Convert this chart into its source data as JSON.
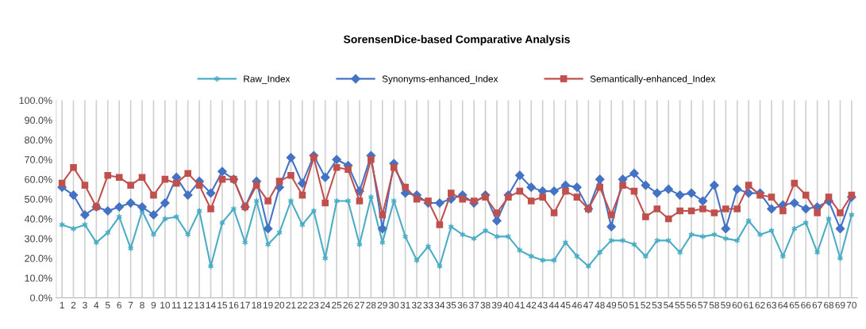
{
  "chart_data": {
    "type": "line",
    "title": "SorensenDice-based Comparative Analysis",
    "categories": [
      "1",
      "2",
      "3",
      "4",
      "5",
      "6",
      "7",
      "8",
      "9",
      "10",
      "11",
      "12",
      "13",
      "14",
      "15",
      "16",
      "17",
      "18",
      "19",
      "20",
      "21",
      "22",
      "23",
      "24",
      "25",
      "26",
      "27",
      "28",
      "29",
      "30",
      "31",
      "32",
      "33",
      "34",
      "35",
      "36",
      "37",
      "38",
      "39",
      "40",
      "41",
      "42",
      "43",
      "44",
      "45",
      "46",
      "47",
      "48",
      "49",
      "50",
      "51",
      "52",
      "53",
      "54",
      "55",
      "56",
      "57",
      "58",
      "59",
      "60",
      "61",
      "62",
      "63",
      "64",
      "65",
      "66",
      "67",
      "68",
      "69",
      "70"
    ],
    "series": [
      {
        "name": "Raw_Index",
        "color": "#4bacc6",
        "marker": "cross",
        "values": [
          37,
          35,
          37,
          28,
          33,
          41,
          25,
          44,
          32,
          40,
          41,
          32,
          44,
          16,
          38,
          45,
          28,
          49,
          27,
          33,
          49,
          37,
          44,
          20,
          49,
          49,
          27,
          51,
          28,
          49,
          31,
          19,
          26,
          16,
          36,
          32,
          30,
          34,
          31,
          31,
          24,
          21,
          19,
          19,
          28,
          21,
          16,
          23,
          29,
          29,
          27,
          21,
          29,
          29,
          23,
          32,
          31,
          32,
          30,
          29,
          39,
          32,
          34,
          21,
          35,
          38,
          23,
          40,
          20,
          42
        ]
      },
      {
        "name": "Synonyms-enhanced_Index",
        "color": "#4472c4",
        "marker": "diamond",
        "values": [
          56,
          52,
          42,
          46,
          44,
          46,
          48,
          46,
          42,
          48,
          61,
          52,
          59,
          53,
          64,
          60,
          46,
          59,
          35,
          56,
          71,
          58,
          72,
          61,
          70,
          67,
          54,
          72,
          35,
          68,
          53,
          52,
          48,
          48,
          50,
          52,
          48,
          52,
          39,
          52,
          62,
          56,
          54,
          54,
          57,
          56,
          45,
          60,
          36,
          60,
          63,
          57,
          53,
          55,
          52,
          53,
          49,
          57,
          35,
          55,
          53,
          53,
          45,
          47,
          48,
          45,
          46,
          49,
          35,
          51
        ]
      },
      {
        "name": "Semantically-enhanced_Index",
        "color": "#c0504d",
        "marker": "square",
        "values": [
          58,
          66,
          57,
          46,
          62,
          61,
          57,
          61,
          52,
          60,
          58,
          63,
          57,
          45,
          60,
          60,
          46,
          57,
          49,
          59,
          62,
          52,
          71,
          48,
          66,
          65,
          49,
          70,
          42,
          66,
          56,
          50,
          49,
          37,
          53,
          50,
          49,
          51,
          43,
          51,
          54,
          49,
          51,
          43,
          54,
          51,
          45,
          56,
          42,
          57,
          54,
          41,
          45,
          40,
          44,
          44,
          45,
          43,
          45,
          45,
          57,
          52,
          51,
          44,
          58,
          52,
          43,
          51,
          43,
          52
        ]
      }
    ],
    "ylim": [
      0,
      100
    ],
    "yticks": [
      {
        "value": 0,
        "label": "0.0%"
      },
      {
        "value": 10,
        "label": "10.0%"
      },
      {
        "value": 20,
        "label": "20.0%"
      },
      {
        "value": 30,
        "label": "30.0%"
      },
      {
        "value": 40,
        "label": "40.0%"
      },
      {
        "value": 50,
        "label": "50.0%"
      },
      {
        "value": 60,
        "label": "60.0%"
      },
      {
        "value": 70,
        "label": "70.0%"
      },
      {
        "value": 80,
        "label": "80.0%"
      },
      {
        "value": 90,
        "label": "90.0%"
      },
      {
        "value": 100,
        "label": "100.0%"
      }
    ],
    "grid": "x",
    "legend": "top",
    "line_style": "solid"
  }
}
